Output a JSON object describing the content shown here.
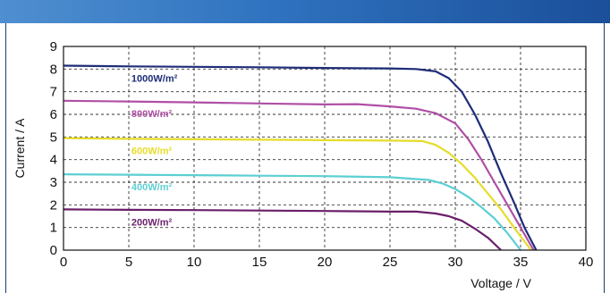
{
  "chart_data": {
    "type": "line",
    "xlabel": "Voltage / V",
    "ylabel": "Current / A",
    "xlim": [
      0,
      40
    ],
    "ylim": [
      0,
      9
    ],
    "x_ticks": [
      "0",
      "5",
      "10",
      "15",
      "20",
      "25",
      "30",
      "35",
      "40"
    ],
    "y_ticks": [
      "0",
      "1",
      "2",
      "3",
      "4",
      "5",
      "6",
      "7",
      "8",
      "9"
    ],
    "grid": true,
    "grid_style": "dashed",
    "series": [
      {
        "name": "1000W/m²",
        "color": "#1e2d78",
        "points": [
          [
            0,
            8.15
          ],
          [
            5,
            8.12
          ],
          [
            10,
            8.1
          ],
          [
            15,
            8.08
          ],
          [
            20,
            8.05
          ],
          [
            25,
            8.03
          ],
          [
            27,
            8.0
          ],
          [
            28.5,
            7.9
          ],
          [
            29.5,
            7.6
          ],
          [
            30.5,
            7.0
          ],
          [
            31.5,
            6.0
          ],
          [
            32.5,
            4.8
          ],
          [
            33.5,
            3.4
          ],
          [
            34.5,
            2.1
          ],
          [
            35.3,
            1.0
          ],
          [
            36.2,
            0
          ]
        ]
      },
      {
        "name": "800W/m²",
        "color": "#b04fa6",
        "points": [
          [
            0,
            6.6
          ],
          [
            5,
            6.57
          ],
          [
            10,
            6.53
          ],
          [
            15,
            6.48
          ],
          [
            20,
            6.44
          ],
          [
            22.5,
            6.45
          ],
          [
            25,
            6.35
          ],
          [
            27,
            6.25
          ],
          [
            28.5,
            6.05
          ],
          [
            30,
            5.6
          ],
          [
            31,
            4.9
          ],
          [
            32,
            4.0
          ],
          [
            33,
            3.0
          ],
          [
            34,
            2.0
          ],
          [
            35,
            1.0
          ],
          [
            36,
            0
          ]
        ]
      },
      {
        "name": "600W/m²",
        "color": "#e6dc2a",
        "points": [
          [
            0,
            4.95
          ],
          [
            5,
            4.92
          ],
          [
            10,
            4.9
          ],
          [
            15,
            4.88
          ],
          [
            20,
            4.86
          ],
          [
            25,
            4.84
          ],
          [
            27.5,
            4.82
          ],
          [
            28.5,
            4.65
          ],
          [
            29.5,
            4.3
          ],
          [
            30.5,
            3.8
          ],
          [
            31.5,
            3.2
          ],
          [
            32.5,
            2.5
          ],
          [
            33.5,
            1.8
          ],
          [
            34.5,
            1.0
          ],
          [
            35.8,
            0
          ]
        ]
      },
      {
        "name": "400W/m²",
        "color": "#5ccfd3",
        "points": [
          [
            0,
            3.35
          ],
          [
            5,
            3.33
          ],
          [
            10,
            3.31
          ],
          [
            15,
            3.29
          ],
          [
            20,
            3.27
          ],
          [
            25,
            3.22
          ],
          [
            28,
            3.1
          ],
          [
            29,
            2.95
          ],
          [
            30,
            2.7
          ],
          [
            31,
            2.35
          ],
          [
            32,
            1.9
          ],
          [
            33,
            1.4
          ],
          [
            34,
            0.75
          ],
          [
            35,
            0
          ]
        ]
      },
      {
        "name": "200W/m²",
        "color": "#6a1f6a",
        "points": [
          [
            0,
            1.8
          ],
          [
            5,
            1.78
          ],
          [
            10,
            1.77
          ],
          [
            15,
            1.75
          ],
          [
            20,
            1.73
          ],
          [
            25,
            1.7
          ],
          [
            27,
            1.7
          ],
          [
            28.5,
            1.62
          ],
          [
            29.5,
            1.5
          ],
          [
            30.5,
            1.3
          ],
          [
            31.5,
            0.95
          ],
          [
            32.5,
            0.55
          ],
          [
            33.5,
            0
          ]
        ]
      }
    ]
  }
}
